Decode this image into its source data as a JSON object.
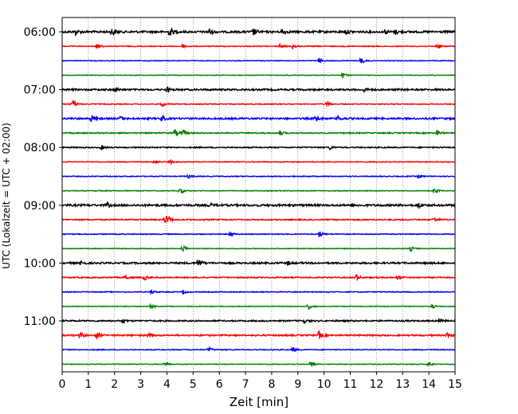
{
  "chart_data": {
    "type": "line",
    "xlabel": "Zeit  [min]",
    "ylabel": "UTC (Lokalzeit = UTC + 02:00)",
    "xlim": [
      0,
      15
    ],
    "x_ticks": [
      "0",
      "1",
      "2",
      "3",
      "4",
      "5",
      "6",
      "7",
      "8",
      "9",
      "10",
      "11",
      "12",
      "13",
      "14",
      "15"
    ],
    "y_ticks": [
      "06:00",
      "07:00",
      "08:00",
      "09:00",
      "10:00",
      "11:00"
    ],
    "grid": "vertical dotted lines at each minute",
    "line_colors": [
      "#000000",
      "#ff0000",
      "#0000ff",
      "#008000"
    ],
    "traces": [
      {
        "label": "06:00",
        "color": "#000000",
        "events": [
          [
            0.5,
            0.6
          ],
          [
            1.9,
            0.8
          ],
          [
            4.1,
            1.0
          ],
          [
            5.6,
            0.7
          ],
          [
            7.3,
            0.7
          ],
          [
            8.4,
            0.6
          ],
          [
            10.8,
            0.6
          ],
          [
            12.3,
            0.5
          ],
          [
            12.7,
            0.5
          ]
        ],
        "noise": 0.35
      },
      {
        "label": "",
        "color": "#ff0000",
        "events": [
          [
            1.3,
            0.7
          ],
          [
            4.6,
            0.5
          ],
          [
            8.3,
            0.5
          ],
          [
            8.8,
            0.5
          ],
          [
            14.3,
            0.7
          ]
        ],
        "noise": 0.15
      },
      {
        "label": "",
        "color": "#0000ff",
        "events": [
          [
            9.8,
            0.6
          ],
          [
            11.4,
            0.7
          ]
        ],
        "noise": 0.12
      },
      {
        "label": "",
        "color": "#008000",
        "events": [
          [
            10.7,
            0.6
          ]
        ],
        "noise": 0.1
      },
      {
        "label": "07:00",
        "color": "#000000",
        "events": [
          [
            2.0,
            0.5
          ],
          [
            4.0,
            0.5
          ],
          [
            11.5,
            0.4
          ]
        ],
        "noise": 0.3
      },
      {
        "label": "",
        "color": "#ff0000",
        "events": [
          [
            0.4,
            0.7
          ],
          [
            3.8,
            0.5
          ],
          [
            10.1,
            0.5
          ]
        ],
        "noise": 0.15
      },
      {
        "label": "",
        "color": "#0000ff",
        "events": [
          [
            1.1,
            0.7
          ],
          [
            2.2,
            0.5
          ],
          [
            3.8,
            0.5
          ],
          [
            9.7,
            0.6
          ],
          [
            10.5,
            0.5
          ]
        ],
        "noise": 0.3
      },
      {
        "label": "",
        "color": "#008000",
        "events": [
          [
            4.3,
            0.7
          ],
          [
            4.6,
            0.6
          ],
          [
            8.3,
            0.5
          ],
          [
            14.3,
            0.6
          ]
        ],
        "noise": 0.2
      },
      {
        "label": "08:00",
        "color": "#000000",
        "events": [
          [
            1.5,
            0.4
          ],
          [
            10.2,
            0.4
          ]
        ],
        "noise": 0.2
      },
      {
        "label": "",
        "color": "#ff0000",
        "events": [
          [
            3.5,
            0.5
          ],
          [
            4.1,
            0.5
          ]
        ],
        "noise": 0.15
      },
      {
        "label": "",
        "color": "#0000ff",
        "events": [
          [
            4.8,
            0.4
          ],
          [
            13.6,
            0.5
          ]
        ],
        "noise": 0.15
      },
      {
        "label": "",
        "color": "#008000",
        "events": [
          [
            4.5,
            0.7
          ],
          [
            14.2,
            0.6
          ]
        ],
        "noise": 0.12
      },
      {
        "label": "09:00",
        "color": "#000000",
        "events": [
          [
            1.7,
            0.4
          ],
          [
            5.6,
            0.4
          ],
          [
            13.6,
            0.5
          ]
        ],
        "noise": 0.35
      },
      {
        "label": "",
        "color": "#ff0000",
        "events": [
          [
            3.9,
            0.8
          ],
          [
            4.0,
            0.8
          ],
          [
            14.2,
            0.5
          ]
        ],
        "noise": 0.2
      },
      {
        "label": "",
        "color": "#0000ff",
        "events": [
          [
            6.4,
            0.6
          ],
          [
            9.8,
            0.7
          ]
        ],
        "noise": 0.15
      },
      {
        "label": "",
        "color": "#008000",
        "events": [
          [
            4.6,
            0.7
          ],
          [
            13.3,
            0.5
          ]
        ],
        "noise": 0.12
      },
      {
        "label": "10:00",
        "color": "#000000",
        "events": [
          [
            0.7,
            0.5
          ],
          [
            5.2,
            0.8
          ],
          [
            8.6,
            0.4
          ]
        ],
        "noise": 0.3
      },
      {
        "label": "",
        "color": "#ff0000",
        "events": [
          [
            2.4,
            0.6
          ],
          [
            3.1,
            0.6
          ],
          [
            11.2,
            0.7
          ],
          [
            12.8,
            0.5
          ]
        ],
        "noise": 0.2
      },
      {
        "label": "",
        "color": "#0000ff",
        "events": [
          [
            3.4,
            0.4
          ],
          [
            4.6,
            0.4
          ]
        ],
        "noise": 0.15
      },
      {
        "label": "",
        "color": "#008000",
        "events": [
          [
            3.4,
            0.6
          ],
          [
            9.4,
            0.6
          ],
          [
            14.1,
            0.5
          ]
        ],
        "noise": 0.12
      },
      {
        "label": "11:00",
        "color": "#000000",
        "events": [
          [
            2.3,
            0.4
          ],
          [
            9.2,
            0.5
          ],
          [
            14.4,
            0.4
          ]
        ],
        "noise": 0.25
      },
      {
        "label": "",
        "color": "#ff0000",
        "events": [
          [
            0.7,
            0.6
          ],
          [
            1.3,
            0.7
          ],
          [
            3.3,
            0.6
          ],
          [
            9.8,
            0.8
          ],
          [
            14.7,
            0.5
          ]
        ],
        "noise": 0.25
      },
      {
        "label": "",
        "color": "#0000ff",
        "events": [
          [
            5.6,
            0.5
          ],
          [
            8.8,
            0.5
          ]
        ],
        "noise": 0.15
      },
      {
        "label": "",
        "color": "#008000",
        "events": [
          [
            3.9,
            0.6
          ],
          [
            9.5,
            0.6
          ],
          [
            14.0,
            0.5
          ]
        ],
        "noise": 0.12
      }
    ]
  }
}
